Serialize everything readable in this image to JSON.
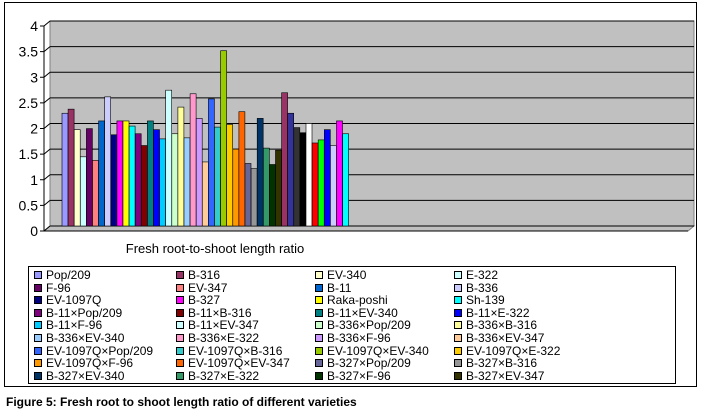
{
  "caption": "Figure 5: Fresh root to shoot length ratio of different varieties",
  "chart_data": {
    "type": "bar",
    "xlabel": "Fresh root-to-shoot length ratio",
    "ylim": [
      0,
      4
    ],
    "yticks": [
      0,
      0.5,
      1,
      1.5,
      2,
      2.5,
      3,
      3.5,
      4
    ],
    "ytick_labels": [
      "0",
      "0.5",
      "1",
      "1.5",
      "2",
      "2.5",
      "3",
      "3.5",
      "4"
    ],
    "grid": true,
    "legend_position": "bottom",
    "plot_background": "#c0c0c0",
    "series": [
      {
        "name": "Pop/209",
        "value": 2.2,
        "color": "#9999ff"
      },
      {
        "name": "B-316",
        "value": 2.28,
        "color": "#993366"
      },
      {
        "name": "EV-340",
        "value": 1.88,
        "color": "#ffffcc"
      },
      {
        "name": "E-322",
        "value": 1.35,
        "color": "#ccffff"
      },
      {
        "name": "F-96",
        "value": 1.9,
        "color": "#660066"
      },
      {
        "name": "EV-347",
        "value": 1.28,
        "color": "#ff8080"
      },
      {
        "name": "B-11",
        "value": 2.05,
        "color": "#0066cc"
      },
      {
        "name": "B-336",
        "value": 2.52,
        "color": "#ccccff"
      },
      {
        "name": "EV-1097Q",
        "value": 1.78,
        "color": "#000080"
      },
      {
        "name": "B-327",
        "value": 2.05,
        "color": "#ff00ff"
      },
      {
        "name": "Raka-poshi",
        "value": 2.05,
        "color": "#ffff00"
      },
      {
        "name": "Sh-139",
        "value": 1.95,
        "color": "#00ffff"
      },
      {
        "name": "B-11×Pop/209",
        "value": 1.8,
        "color": "#800080"
      },
      {
        "name": "B-11×B-316",
        "value": 1.57,
        "color": "#800000"
      },
      {
        "name": "B-11×EV-340",
        "value": 2.05,
        "color": "#008080"
      },
      {
        "name": "B-11×E-322",
        "value": 1.88,
        "color": "#0000ff"
      },
      {
        "name": "B-11×F-96",
        "value": 1.7,
        "color": "#00ccff"
      },
      {
        "name": "B-11×EV-347",
        "value": 2.65,
        "color": "#ccffff"
      },
      {
        "name": "B-336×Pop/209",
        "value": 1.8,
        "color": "#ccffcc"
      },
      {
        "name": "B-336×B-316",
        "value": 2.32,
        "color": "#ffff99"
      },
      {
        "name": "B-336×EV-340",
        "value": 1.72,
        "color": "#99ccff"
      },
      {
        "name": "B-336×E-322",
        "value": 2.58,
        "color": "#ff99cc"
      },
      {
        "name": "B-336×F-96",
        "value": 2.1,
        "color": "#cc99ff"
      },
      {
        "name": "B-336×EV-347",
        "value": 1.25,
        "color": "#ffcc99"
      },
      {
        "name": "EV-1097Q×Pop/209",
        "value": 2.48,
        "color": "#3366ff"
      },
      {
        "name": "EV-1097Q×B-316",
        "value": 1.93,
        "color": "#33cccc"
      },
      {
        "name": "EV-1097Q×EV-340",
        "value": 3.42,
        "color": "#99cc00"
      },
      {
        "name": "EV-1097Q×E-322",
        "value": 1.98,
        "color": "#ffcc00"
      },
      {
        "name": "EV-1097Q×F-96",
        "value": 1.5,
        "color": "#ff9900"
      },
      {
        "name": "EV-1097Q×EV-347",
        "value": 2.23,
        "color": "#ff6600"
      },
      {
        "name": "B-327×Pop/209",
        "value": 1.22,
        "color": "#666699"
      },
      {
        "name": "B-327×B-316",
        "value": 1.12,
        "color": "#969696"
      },
      {
        "name": "B-327×EV-340",
        "value": 2.1,
        "color": "#003366"
      },
      {
        "name": "B-327×E-322",
        "value": 1.52,
        "color": "#339966"
      },
      {
        "name": "B-327×F-96",
        "value": 1.2,
        "color": "#003300"
      },
      {
        "name": "B-327×EV-347",
        "value": 1.48,
        "color": "#333300"
      }
    ],
    "extra_bars": [
      {
        "value": 2.6,
        "color": "#993366"
      },
      {
        "value": 2.2,
        "color": "#333399"
      },
      {
        "value": 1.92,
        "color": "#333333"
      },
      {
        "value": 1.82,
        "color": "#000000"
      },
      {
        "value": 2.0,
        "color": "#ffffff"
      },
      {
        "value": 1.62,
        "color": "#ff0000"
      },
      {
        "value": 1.68,
        "color": "#00ff00"
      },
      {
        "value": 1.88,
        "color": "#0000ff"
      },
      {
        "value": 1.57,
        "color": "#ccccff"
      },
      {
        "value": 2.05,
        "color": "#ff00ff"
      },
      {
        "value": 1.8,
        "color": "#00ffff"
      }
    ]
  }
}
